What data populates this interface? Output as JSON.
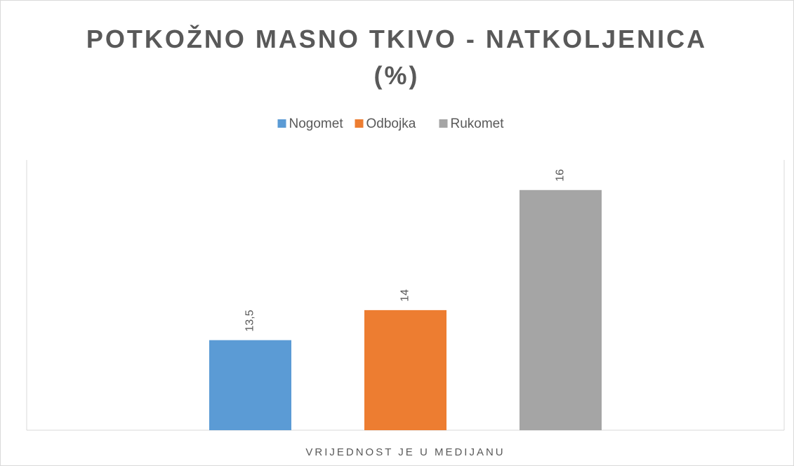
{
  "chart_data": {
    "type": "bar",
    "title": "POTKOŽNO MASNO TKIVO - NATKOLJENICA (%)",
    "categories": [
      "VRIJEDNOST JE U MEDIJANU"
    ],
    "series": [
      {
        "name": "Nogomet",
        "color": "#5b9bd5",
        "values": [
          13.5
        ],
        "value_labels": [
          "13,5"
        ]
      },
      {
        "name": "Odbojka",
        "color": "#ed7d31",
        "values": [
          14
        ],
        "value_labels": [
          "14"
        ]
      },
      {
        "name": "Rukomet",
        "color": "#a5a5a5",
        "values": [
          16
        ],
        "value_labels": [
          "16"
        ]
      }
    ],
    "ylim": [
      12,
      16.5
    ],
    "legend": "top"
  }
}
